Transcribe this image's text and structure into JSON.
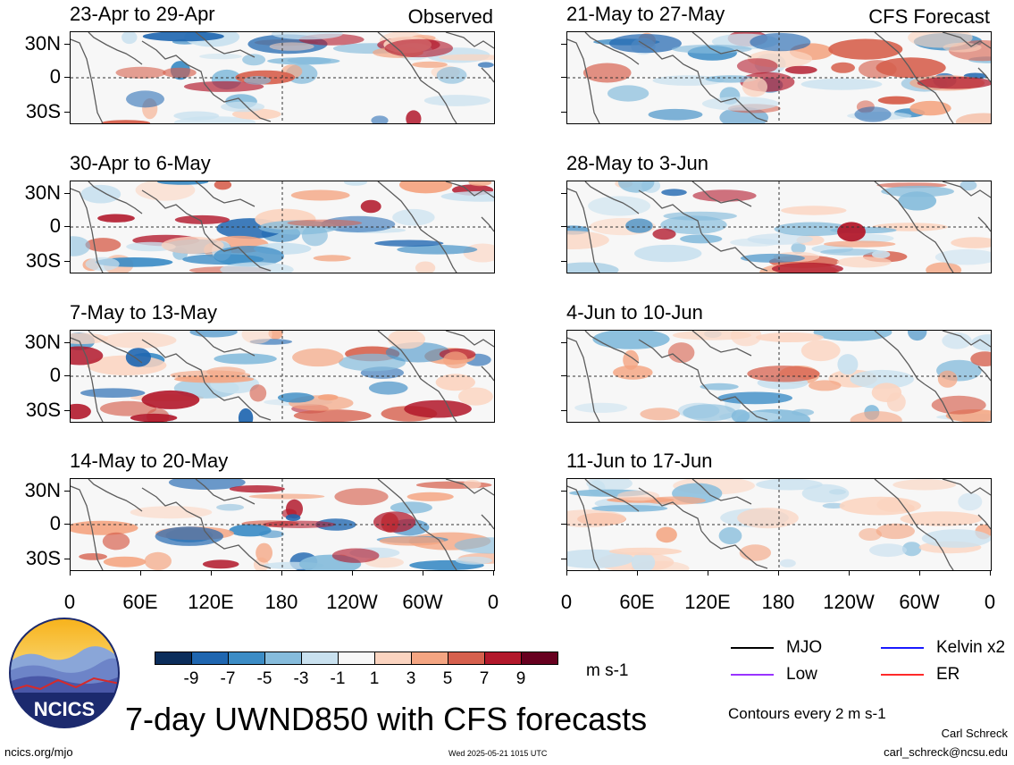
{
  "panels_left": [
    {
      "title": "23-Apr to 29-Apr",
      "tag": "Observed"
    },
    {
      "title": "30-Apr to 6-May",
      "tag": ""
    },
    {
      "title": "7-May to 13-May",
      "tag": ""
    },
    {
      "title": "14-May to 20-May",
      "tag": ""
    }
  ],
  "panels_right": [
    {
      "title": "21-May to 27-May",
      "tag": "CFS Forecast"
    },
    {
      "title": "28-May to 3-Jun",
      "tag": ""
    },
    {
      "title": "4-Jun to 10-Jun",
      "tag": ""
    },
    {
      "title": "11-Jun to 17-Jun",
      "tag": ""
    }
  ],
  "lat_labels": [
    "30N",
    "0",
    "30S"
  ],
  "lon_labels": [
    "0",
    "60E",
    "120E",
    "180",
    "120W",
    "60W",
    "0"
  ],
  "colorbar": {
    "labels": [
      "-9",
      "-7",
      "-5",
      "-3",
      "-1",
      "1",
      "3",
      "5",
      "7",
      "9"
    ],
    "colors": [
      "#0b2d5b",
      "#1f66b0",
      "#3c8cc5",
      "#86bcdc",
      "#c9e1ef",
      "#f7f7f7",
      "#fbd4c0",
      "#f4a582",
      "#d6604d",
      "#b2182b",
      "#67001f"
    ],
    "units": "m s-1"
  },
  "legend": [
    {
      "label": "MJO",
      "color": "#000000"
    },
    {
      "label": "Kelvin x2",
      "color": "#1a1aff"
    },
    {
      "label": "Low",
      "color": "#9933ff"
    },
    {
      "label": "ER",
      "color": "#ff2a2a"
    }
  ],
  "contours_note": "Contours every 2 m s-1",
  "main_title": "7-day UWND850 with CFS forecasts",
  "logo_text": "NCICS",
  "footer": {
    "site": "ncics.org/mjo",
    "timestamp": "Wed 2025-05-21 1015 UTC",
    "author": "Carl Schreck",
    "email": "carl_schreck@ncsu.edu"
  }
}
